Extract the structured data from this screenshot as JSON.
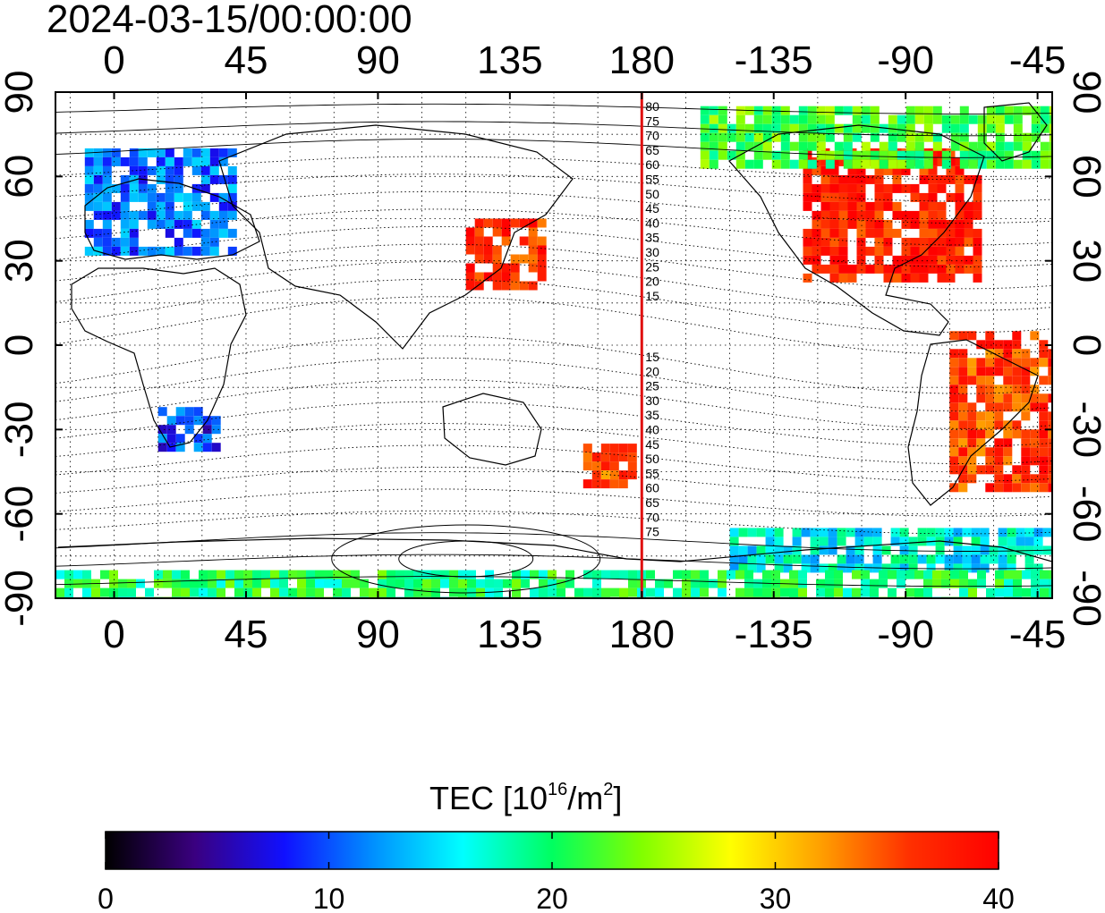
{
  "title": "2024-03-15/00:00:00",
  "map": {
    "lon_ticks_top": [
      "0",
      "45",
      "90",
      "135",
      "180",
      "-135",
      "-90",
      "-45"
    ],
    "lon_ticks_bottom": [
      "0",
      "45",
      "90",
      "135",
      "180",
      "-135",
      "-90",
      "-45"
    ],
    "lat_ticks_left": [
      "90",
      "60",
      "30",
      "0",
      "-30",
      "-60",
      "-90"
    ],
    "lat_ticks_right": [
      "90",
      "60",
      "30",
      "0",
      "-30",
      "-60",
      "-90"
    ],
    "lon_range": [
      -20,
      320
    ],
    "lat_range": [
      -90,
      90
    ],
    "grid_lon_step": 15,
    "grid_lat_step": 15,
    "meridian_line": {
      "lon": 180,
      "color": "#e01010"
    },
    "contour_labels_north": [
      "80",
      "75",
      "70",
      "65",
      "60",
      "55",
      "50",
      "45",
      "40",
      "35",
      "30",
      "25",
      "20",
      "15"
    ],
    "contour_labels_south": [
      "15",
      "20",
      "25",
      "30",
      "35",
      "40",
      "45",
      "50",
      "55",
      "60",
      "65",
      "70",
      "75"
    ],
    "tec_regions": [
      {
        "name": "north-america",
        "lon": [
          -125,
          -65
        ],
        "lat": [
          25,
          70
        ],
        "value": 38
      },
      {
        "name": "east-asia",
        "lon": [
          120,
          145
        ],
        "lat": [
          22,
          45
        ],
        "value": 37
      },
      {
        "name": "europe",
        "lon": [
          -10,
          40
        ],
        "lat": [
          35,
          70
        ],
        "value": 11
      },
      {
        "name": "south-africa",
        "lon": [
          15,
          35
        ],
        "lat": [
          -35,
          -22
        ],
        "value": 9
      },
      {
        "name": "south-america",
        "lon": [
          -75,
          -40
        ],
        "lat": [
          -50,
          5
        ],
        "value": 36
      },
      {
        "name": "antarctic-coast",
        "lon": [
          -150,
          -40
        ],
        "lat": [
          -78,
          -65
        ],
        "value": 16
      },
      {
        "name": "tasman",
        "lon": [
          160,
          178
        ],
        "lat": [
          -48,
          -35
        ],
        "value": 35
      },
      {
        "name": "arctic",
        "lon": [
          -160,
          -40
        ],
        "lat": [
          65,
          85
        ],
        "value": 22
      },
      {
        "name": "south-polar",
        "lon": [
          -20,
          340
        ],
        "lat": [
          -90,
          -80
        ],
        "value": 20
      }
    ]
  },
  "colorbar": {
    "label_main": "TEC  [10",
    "label_exp1": "16",
    "label_mid": "/m",
    "label_exp2": "2",
    "label_end": "]",
    "ticks": [
      "0",
      "10",
      "20",
      "30",
      "40"
    ],
    "min": 0,
    "max": 40,
    "stops": [
      "#000000",
      "#3a0080",
      "#1010ff",
      "#0090ff",
      "#00ffff",
      "#00ff60",
      "#80ff00",
      "#ffff00",
      "#ffa000",
      "#ff3000",
      "#ff0000"
    ]
  }
}
